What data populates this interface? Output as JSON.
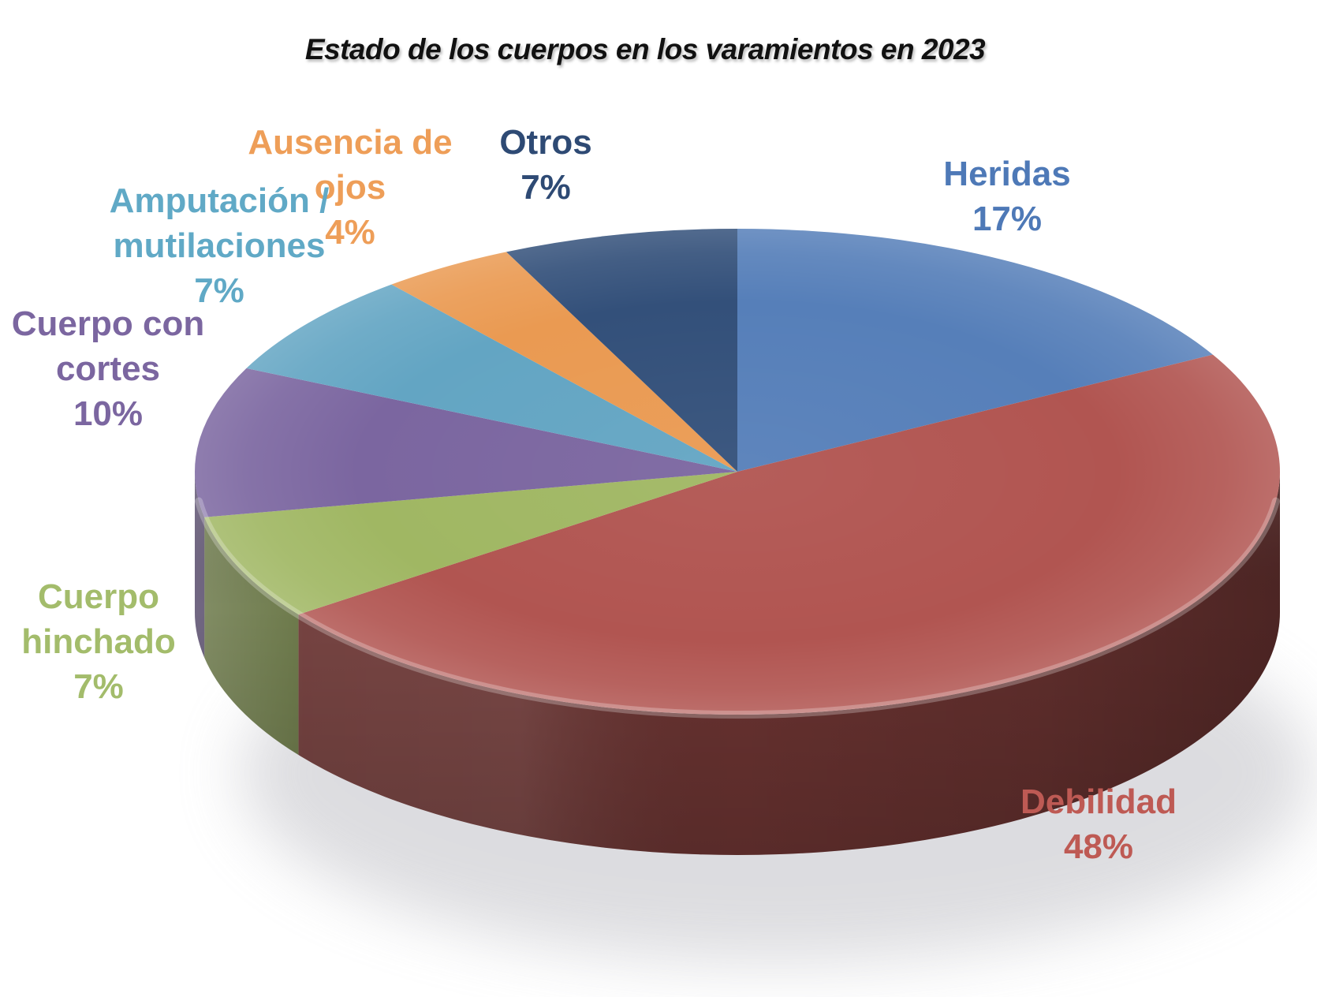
{
  "title": "Estado de los cuerpos en los varamientos en 2023",
  "chart_data": {
    "type": "pie",
    "style": "3d-exploded-none",
    "title": "Estado de los cuerpos en los varamientos en 2023",
    "unit": "%",
    "start_angle_deg": 0,
    "direction": "clockwise",
    "legend_position": "outside-labels",
    "segments": [
      {
        "label": "Heridas",
        "value": 17,
        "color": "#567FB9"
      },
      {
        "label": "Debilidad",
        "value": 48,
        "color": "#B15551"
      },
      {
        "label": "Cuerpo hinchado",
        "value": 7,
        "color": "#A0B763"
      },
      {
        "label": "Cuerpo con cortes",
        "value": 10,
        "color": "#7B66A0"
      },
      {
        "label": "Amputación / mutilaciones",
        "value": 7,
        "color": "#63A5C3"
      },
      {
        "label": "Ausencia de ojos",
        "value": 4,
        "color": "#EA9A52"
      },
      {
        "label": "Otros",
        "value": 7,
        "color": "#33507A"
      }
    ]
  },
  "labels": {
    "heridas": {
      "color": "#4E79B7",
      "lines": [
        "Heridas",
        "17%"
      ]
    },
    "otros": {
      "color": "#2E4A74",
      "lines": [
        "Otros",
        "7%"
      ]
    },
    "ausencia": {
      "color": "#EE9E58",
      "lines": [
        "Ausencia de",
        "ojos",
        "4%"
      ]
    },
    "amputacion": {
      "color": "#60A9C6",
      "lines": [
        "Amputación /",
        "mutilaciones",
        "7%"
      ]
    },
    "cortes": {
      "color": "#7B66A0",
      "lines": [
        "Cuerpo con",
        "cortes",
        "10%"
      ]
    },
    "hinchado": {
      "color": "#A3BC6B",
      "lines": [
        "Cuerpo",
        "hinchado",
        "7%"
      ]
    },
    "debilidad": {
      "color": "#BE5A54",
      "lines": [
        "Debilidad",
        "48%"
      ]
    }
  }
}
